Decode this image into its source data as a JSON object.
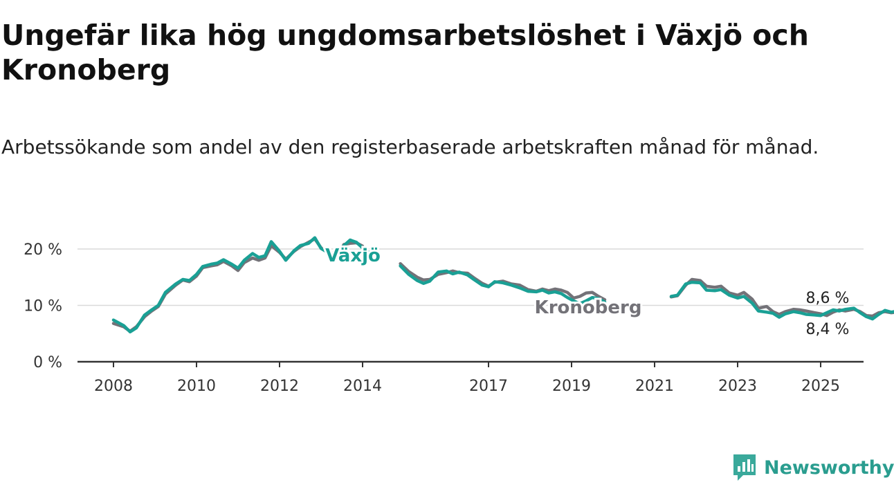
{
  "title": "Ungefär lika hög ungdomsarbetslöshet i Växjö och Kronoberg",
  "subtitle": "Arbetssökande som andel av den registerbaserade arbetskraften månad för månad.",
  "brand": {
    "name": "Newsworthy",
    "color": "#3aa99b"
  },
  "chart_data": {
    "type": "line",
    "title": "Ungefär lika hög ungdomsarbetslöshet i Växjö och Kronoberg",
    "subtitle": "Arbetssökande som andel av den registerbaserade arbetskraften månad för månad.",
    "ylim": [
      0,
      25
    ],
    "xlim": [
      2008,
      2026
    ],
    "yticks": [
      0,
      10,
      20
    ],
    "ytick_labels": [
      "0 %",
      "10 %",
      "20 %"
    ],
    "xticks": [
      2008,
      2010,
      2012,
      2014,
      2017,
      2019,
      2021,
      2023,
      2025
    ],
    "xtick_labels": [
      "2008",
      "2010",
      "2012",
      "2014",
      "2017",
      "2019",
      "2021",
      "2023",
      "2025"
    ],
    "grid": true,
    "series": [
      {
        "name": "Kronoberg",
        "color": "#737278",
        "end_label": "8,6 %",
        "points": [
          [
            2008.0,
            6.8
          ],
          [
            2008.25,
            6.2
          ],
          [
            2008.4,
            5.4
          ],
          [
            2008.55,
            6.2
          ],
          [
            2008.75,
            8.0
          ],
          [
            2008.92,
            9.0
          ],
          [
            2009.08,
            9.8
          ],
          [
            2009.25,
            12.0
          ],
          [
            2009.5,
            13.6
          ],
          [
            2009.67,
            14.5
          ],
          [
            2009.83,
            14.2
          ],
          [
            2010.0,
            15.2
          ],
          [
            2010.15,
            16.7
          ],
          [
            2010.35,
            17.0
          ],
          [
            2010.5,
            17.2
          ],
          [
            2010.65,
            17.8
          ],
          [
            2010.85,
            17.0
          ],
          [
            2011.0,
            16.2
          ],
          [
            2011.15,
            17.6
          ],
          [
            2011.35,
            18.4
          ],
          [
            2011.5,
            18.0
          ],
          [
            2011.65,
            18.4
          ],
          [
            2011.8,
            20.6
          ],
          [
            2012.0,
            19.4
          ],
          [
            2012.15,
            18.2
          ],
          [
            2012.35,
            19.6
          ],
          [
            2012.5,
            20.4
          ],
          [
            2012.7,
            21.2
          ],
          [
            2012.85,
            21.8
          ],
          [
            2013.0,
            20.2
          ],
          [
            2013.2,
            19.5
          ],
          [
            2013.4,
            18.8
          ],
          [
            2013.55,
            20.8
          ],
          [
            2013.7,
            21.0
          ],
          [
            2013.85,
            21.1
          ],
          [
            2014.0,
            20.5
          ]
        ],
        "points2": [
          [
            2014.9,
            17.4
          ],
          [
            2015.1,
            16.0
          ],
          [
            2015.3,
            15.0
          ],
          [
            2015.45,
            14.5
          ],
          [
            2015.6,
            14.6
          ],
          [
            2015.8,
            15.5
          ],
          [
            2016.0,
            15.8
          ],
          [
            2016.15,
            16.1
          ],
          [
            2016.3,
            15.8
          ],
          [
            2016.5,
            15.7
          ],
          [
            2016.65,
            14.9
          ],
          [
            2016.85,
            13.9
          ],
          [
            2017.0,
            13.4
          ],
          [
            2017.15,
            14.1
          ],
          [
            2017.35,
            14.3
          ],
          [
            2017.55,
            13.8
          ],
          [
            2017.75,
            13.6
          ],
          [
            2017.95,
            12.8
          ],
          [
            2018.15,
            12.5
          ],
          [
            2018.3,
            12.9
          ],
          [
            2018.45,
            12.6
          ],
          [
            2018.6,
            12.9
          ],
          [
            2018.75,
            12.7
          ],
          [
            2018.9,
            12.3
          ],
          [
            2019.05,
            11.3
          ],
          [
            2019.2,
            11.6
          ],
          [
            2019.35,
            12.2
          ],
          [
            2019.5,
            12.3
          ],
          [
            2019.65,
            11.6
          ],
          [
            2019.8,
            11.0
          ]
        ],
        "points3": [
          [
            2021.4,
            11.5
          ],
          [
            2021.55,
            11.7
          ],
          [
            2021.75,
            13.6
          ],
          [
            2021.9,
            14.6
          ],
          [
            2022.1,
            14.4
          ],
          [
            2022.25,
            13.4
          ],
          [
            2022.45,
            13.2
          ],
          [
            2022.6,
            13.4
          ],
          [
            2022.8,
            12.2
          ],
          [
            2023.0,
            11.8
          ],
          [
            2023.15,
            12.3
          ],
          [
            2023.35,
            11.1
          ],
          [
            2023.5,
            9.5
          ],
          [
            2023.7,
            9.8
          ],
          [
            2023.85,
            8.9
          ],
          [
            2024.0,
            8.4
          ],
          [
            2024.15,
            8.9
          ],
          [
            2024.35,
            9.3
          ],
          [
            2024.5,
            9.2
          ],
          [
            2024.65,
            9.0
          ],
          [
            2024.85,
            8.7
          ],
          [
            2025.0,
            8.5
          ],
          [
            2025.15,
            8.2
          ],
          [
            2025.3,
            8.8
          ],
          [
            2025.45,
            9.2
          ],
          [
            2025.6,
            9.0
          ],
          [
            2025.8,
            9.3
          ],
          [
            2025.95,
            8.9
          ],
          [
            2026.1,
            8.2
          ],
          [
            2026.25,
            8.1
          ],
          [
            2026.4,
            8.7
          ],
          [
            2026.55,
            8.9
          ],
          [
            2026.7,
            8.7
          ],
          [
            2026.85,
            8.8
          ],
          [
            2027.0,
            8.6
          ]
        ]
      },
      {
        "name": "Växjö",
        "color": "#1aa095",
        "end_label": "8,4 %",
        "points": [
          [
            2008.0,
            7.4
          ],
          [
            2008.25,
            6.4
          ],
          [
            2008.4,
            5.3
          ],
          [
            2008.55,
            6.0
          ],
          [
            2008.75,
            8.3
          ],
          [
            2008.92,
            9.2
          ],
          [
            2009.08,
            10.0
          ],
          [
            2009.25,
            12.3
          ],
          [
            2009.5,
            13.8
          ],
          [
            2009.67,
            14.6
          ],
          [
            2009.83,
            14.4
          ],
          [
            2010.0,
            15.5
          ],
          [
            2010.15,
            16.9
          ],
          [
            2010.35,
            17.3
          ],
          [
            2010.5,
            17.5
          ],
          [
            2010.65,
            18.1
          ],
          [
            2010.85,
            17.3
          ],
          [
            2011.0,
            16.6
          ],
          [
            2011.15,
            18.0
          ],
          [
            2011.35,
            19.2
          ],
          [
            2011.5,
            18.5
          ],
          [
            2011.65,
            18.8
          ],
          [
            2011.8,
            21.3
          ],
          [
            2012.0,
            19.6
          ],
          [
            2012.15,
            18.0
          ],
          [
            2012.35,
            19.7
          ],
          [
            2012.5,
            20.6
          ],
          [
            2012.7,
            21.0
          ],
          [
            2012.85,
            22.0
          ],
          [
            2013.0,
            20.1
          ],
          [
            2013.2,
            19.2
          ],
          [
            2013.4,
            18.6
          ],
          [
            2013.55,
            20.6
          ],
          [
            2013.7,
            21.6
          ],
          [
            2013.85,
            21.2
          ],
          [
            2014.0,
            20.2
          ],
          [
            2014.15,
            19.4
          ]
        ],
        "points2": [
          [
            2014.9,
            17.0
          ],
          [
            2015.1,
            15.5
          ],
          [
            2015.3,
            14.4
          ],
          [
            2015.45,
            13.9
          ],
          [
            2015.6,
            14.3
          ],
          [
            2015.8,
            15.9
          ],
          [
            2016.0,
            16.1
          ],
          [
            2016.15,
            15.6
          ],
          [
            2016.3,
            15.9
          ],
          [
            2016.5,
            15.4
          ],
          [
            2016.65,
            14.6
          ],
          [
            2016.85,
            13.6
          ],
          [
            2017.0,
            13.3
          ],
          [
            2017.15,
            14.2
          ],
          [
            2017.35,
            14.0
          ],
          [
            2017.55,
            13.6
          ],
          [
            2017.75,
            13.1
          ],
          [
            2017.95,
            12.5
          ],
          [
            2018.15,
            12.4
          ],
          [
            2018.3,
            12.7
          ],
          [
            2018.45,
            12.2
          ],
          [
            2018.6,
            12.4
          ],
          [
            2018.75,
            12.1
          ],
          [
            2018.9,
            11.4
          ],
          [
            2019.05,
            10.8
          ],
          [
            2019.2,
            10.3
          ],
          [
            2019.35,
            10.8
          ],
          [
            2019.5,
            11.4
          ],
          [
            2019.65,
            11.2
          ],
          [
            2019.8,
            10.6
          ]
        ],
        "points3": [
          [
            2021.4,
            11.6
          ],
          [
            2021.55,
            11.8
          ],
          [
            2021.75,
            13.8
          ],
          [
            2021.9,
            14.1
          ],
          [
            2022.1,
            14.0
          ],
          [
            2022.25,
            12.7
          ],
          [
            2022.45,
            12.6
          ],
          [
            2022.6,
            12.8
          ],
          [
            2022.8,
            11.8
          ],
          [
            2023.0,
            11.3
          ],
          [
            2023.15,
            11.6
          ],
          [
            2023.35,
            10.4
          ],
          [
            2023.5,
            9.0
          ],
          [
            2023.7,
            8.8
          ],
          [
            2023.85,
            8.6
          ],
          [
            2024.0,
            7.9
          ],
          [
            2024.15,
            8.5
          ],
          [
            2024.35,
            8.9
          ],
          [
            2024.5,
            8.7
          ],
          [
            2024.65,
            8.4
          ],
          [
            2024.85,
            8.3
          ],
          [
            2025.0,
            8.2
          ],
          [
            2025.15,
            8.7
          ],
          [
            2025.3,
            9.2
          ],
          [
            2025.45,
            9.0
          ],
          [
            2025.6,
            9.3
          ],
          [
            2025.8,
            9.5
          ],
          [
            2025.95,
            8.7
          ],
          [
            2026.1,
            8.0
          ],
          [
            2026.25,
            7.6
          ],
          [
            2026.4,
            8.4
          ],
          [
            2026.55,
            9.1
          ],
          [
            2026.7,
            8.8
          ],
          [
            2026.85,
            9.0
          ],
          [
            2027.0,
            8.4
          ]
        ]
      }
    ]
  }
}
